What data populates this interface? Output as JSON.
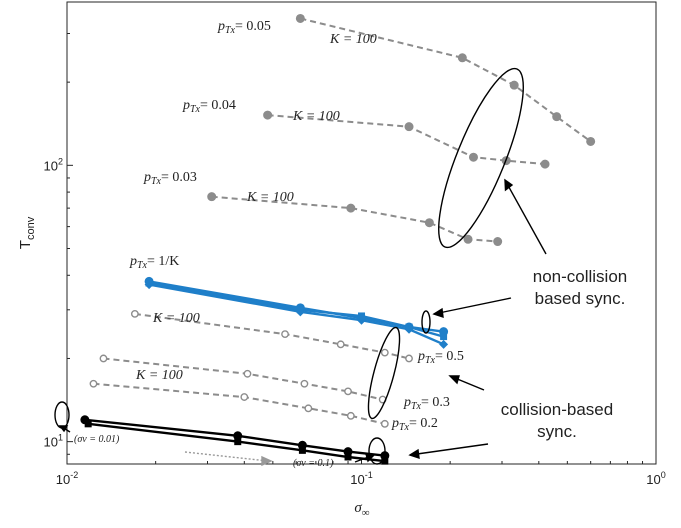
{
  "chart_data": {
    "type": "line",
    "xlabel": "σ∞",
    "ylabel": "Tconv",
    "xscale": "log",
    "yscale": "log",
    "xlim": [
      0.01,
      1
    ],
    "ylim": [
      8.3,
      390
    ],
    "xticks": [
      {
        "value": 0.01,
        "base": "10",
        "exp": "-2"
      },
      {
        "value": 0.1,
        "base": "10",
        "exp": "-1"
      },
      {
        "value": 1,
        "base": "10",
        "exp": "0"
      }
    ],
    "yticks": [
      {
        "value": 10,
        "base": "10",
        "exp": "1"
      },
      {
        "value": 100,
        "base": "10",
        "exp": "2"
      }
    ],
    "grid": false,
    "series": [
      {
        "group": "non-collision",
        "color": "#8c8c8c",
        "dash": true,
        "marker": "filled-circle",
        "points": [
          [
            0.062,
            340
          ],
          [
            0.22,
            245
          ],
          [
            0.33,
            195
          ],
          [
            0.46,
            150
          ],
          [
            0.6,
            122
          ]
        ]
      },
      {
        "group": "non-collision",
        "color": "#8c8c8c",
        "dash": true,
        "marker": "filled-circle",
        "points": [
          [
            0.048,
            152
          ],
          [
            0.145,
            138
          ],
          [
            0.24,
            107
          ],
          [
            0.31,
            104
          ],
          [
            0.42,
            101
          ]
        ]
      },
      {
        "group": "non-collision",
        "color": "#8c8c8c",
        "dash": true,
        "marker": "filled-circle",
        "points": [
          [
            0.031,
            77
          ],
          [
            0.092,
            70
          ],
          [
            0.17,
            62
          ],
          [
            0.23,
            54
          ],
          [
            0.29,
            53
          ]
        ]
      },
      {
        "group": "pTx=1/K",
        "color": "#1f7fc9",
        "dash": false,
        "marker": "circle",
        "points": [
          [
            0.019,
            38
          ],
          [
            0.062,
            30.5
          ],
          [
            0.1,
            28
          ],
          [
            0.145,
            26
          ],
          [
            0.19,
            25
          ]
        ]
      },
      {
        "group": "pTx=1/K",
        "color": "#1f7fc9",
        "dash": false,
        "marker": "diamond",
        "points": [
          [
            0.019,
            37
          ],
          [
            0.062,
            29.5
          ],
          [
            0.1,
            27.5
          ],
          [
            0.145,
            25.5
          ],
          [
            0.19,
            22.5
          ]
        ]
      },
      {
        "group": "pTx=1/K",
        "color": "#1f7fc9",
        "dash": false,
        "marker": "square",
        "points": [
          [
            0.019,
            37.5
          ],
          [
            0.062,
            30
          ],
          [
            0.1,
            28.5
          ],
          [
            0.145,
            26
          ],
          [
            0.19,
            24
          ]
        ]
      },
      {
        "group": "collision",
        "color": "#8c8c8c",
        "dash": true,
        "marker": "open-circle",
        "points": [
          [
            0.017,
            29
          ],
          [
            0.055,
            24.5
          ],
          [
            0.085,
            22.5
          ],
          [
            0.12,
            21
          ],
          [
            0.145,
            20
          ]
        ]
      },
      {
        "group": "collision",
        "color": "#8c8c8c",
        "dash": true,
        "marker": "open-circle",
        "points": [
          [
            0.0133,
            20
          ],
          [
            0.041,
            17.6
          ],
          [
            0.064,
            16.2
          ],
          [
            0.09,
            15.2
          ],
          [
            0.118,
            14.2
          ]
        ]
      },
      {
        "group": "collision",
        "color": "#8c8c8c",
        "dash": true,
        "marker": "open-circle",
        "points": [
          [
            0.0123,
            16.2
          ],
          [
            0.04,
            14.5
          ],
          [
            0.066,
            13.2
          ],
          [
            0.092,
            12.4
          ],
          [
            0.12,
            11.6
          ]
        ]
      },
      {
        "group": "collision",
        "color": "#000000",
        "dash": false,
        "marker": "filled-circle",
        "points": [
          [
            0.0115,
            12
          ],
          [
            0.038,
            10.5
          ],
          [
            0.063,
            9.7
          ],
          [
            0.09,
            9.2
          ],
          [
            0.12,
            8.9
          ]
        ]
      },
      {
        "group": "collision",
        "color": "#000000",
        "dash": false,
        "marker": "filled-square",
        "points": [
          [
            0.0118,
            11.6
          ],
          [
            0.038,
            10.0
          ],
          [
            0.063,
            9.3
          ],
          [
            0.09,
            8.8
          ],
          [
            0.12,
            8.5
          ]
        ]
      }
    ],
    "annotations": {
      "ptx005": "= 0.05",
      "ptx004": "= 0.04",
      "ptx003": "= 0.03",
      "ptx1k": "= 1/K",
      "ptx05": "= 0.5",
      "ptx03": "= 0.3",
      "ptx02": "= 0.2",
      "k100": "K = 100",
      "sigma001": "(σv = 0.01)",
      "sigma01": "(σv = 0.1)",
      "noncollision_line1": "non-collision",
      "noncollision_line2": "based sync.",
      "collision_line1": "collision-based",
      "collision_line2": "sync."
    }
  }
}
